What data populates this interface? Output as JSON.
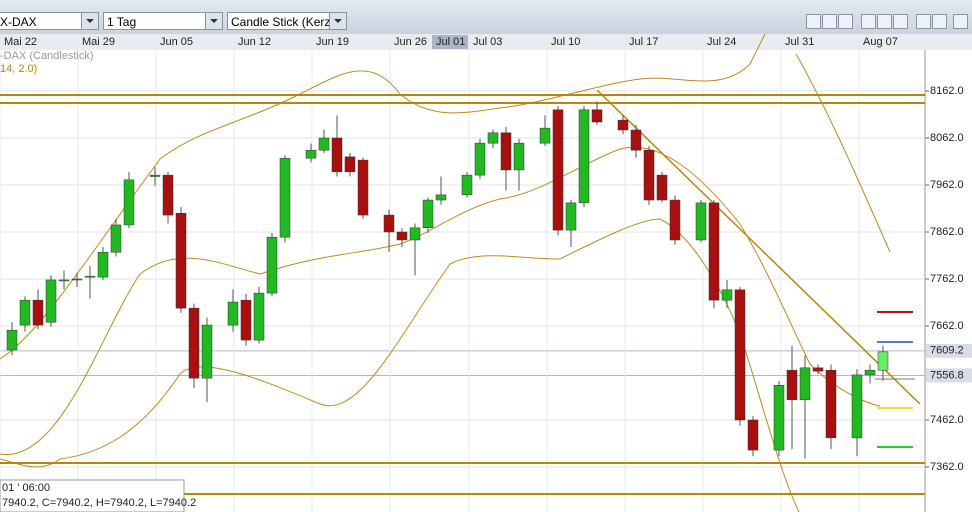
{
  "toolbar": {
    "symbol": "X-DAX",
    "interval": "1 Tag",
    "chart_type": "Candle Stick (Kerzer"
  },
  "chart_data": {
    "type": "candlestick",
    "legend": [
      "-DAX (Candlestick)",
      "14, 2.0)"
    ],
    "info": [
      "01 ' 06:00",
      "7940.2, C=7940.2, H=7940.2, L=7940.2"
    ],
    "dates": [
      "Mai 22",
      "Mai 29",
      "Jun 05",
      "Jun 12",
      "Jun 19",
      "Jun 26",
      "Jul 03",
      "Jul 10",
      "Jul 17",
      "Jul 24",
      "Jul 31",
      "Aug 07"
    ],
    "crosshair_date": "Jul 01",
    "ylim": [
      7266.3,
      8249.2
    ],
    "yticks": [
      {
        "value": 8162,
        "label": "8162.0"
      },
      {
        "value": 8062,
        "label": "8062.0"
      },
      {
        "value": 7962,
        "label": "7962.0"
      },
      {
        "value": 7862,
        "label": "7862.0"
      },
      {
        "value": 7762,
        "label": "7762.0"
      },
      {
        "value": 7662,
        "label": "7662.0"
      },
      {
        "value": 7462,
        "label": "7462.0"
      },
      {
        "value": 7362,
        "label": "7362.0"
      }
    ],
    "price_markers": [
      7609.2,
      7556.8
    ],
    "up_color": "#22b822",
    "down_color": "#a81010",
    "last_color": "#66ee66",
    "open": [
      7611,
      7664,
      7717,
      7670,
      7758,
      7760,
      7766,
      7766,
      7819,
      7877,
      null,
      7980,
      7983,
      7902,
      7700,
      7551,
      null,
      7664,
      7717,
      7632,
      7732,
      7851,
      null,
      8019,
      8036,
      8062,
      8022,
      8015,
      null,
      7898,
      7862,
      7845,
      7871,
      7930,
      null,
      7941,
      7983,
      8051,
      8073,
      7994,
      null,
      8051,
      8122,
      7866,
      7924,
      8122,
      null,
      8100,
      8079,
      8036,
      7983,
      7930,
      null,
      7845,
      7924,
      7717,
      7739,
      7462,
      null,
      7398,
      7568,
      7505,
      7573,
      7568,
      null,
      7424,
      7558,
      7568
    ],
    "high": [
      7670,
      7725,
      7740,
      7770,
      7780,
      7775,
      7790,
      7830,
      7890,
      7990,
      null,
      8000,
      7990,
      7915,
      7710,
      7680,
      null,
      7740,
      7730,
      7745,
      7860,
      8025,
      null,
      8050,
      8080,
      8110,
      8030,
      8020,
      null,
      7910,
      7870,
      7880,
      7935,
      7980,
      null,
      7990,
      8060,
      8080,
      8085,
      8060,
      null,
      8110,
      8130,
      7930,
      8130,
      8140,
      null,
      8110,
      8090,
      8045,
      7990,
      7940,
      null,
      7930,
      7930,
      7760,
      7745,
      7470,
      null,
      7545,
      7620,
      7600,
      7580,
      7580,
      null,
      7570,
      7580,
      7620
    ],
    "low": [
      7600,
      7650,
      7655,
      7660,
      7740,
      7745,
      7720,
      7760,
      7810,
      7870,
      null,
      7960,
      7880,
      7690,
      7530,
      7500,
      null,
      7650,
      7620,
      7625,
      7725,
      7840,
      null,
      8010,
      8030,
      7980,
      7980,
      7890,
      null,
      7820,
      7830,
      7770,
      7860,
      7920,
      null,
      7935,
      7975,
      8040,
      7950,
      7950,
      null,
      8045,
      7855,
      7830,
      7915,
      8090,
      null,
      8070,
      8020,
      7920,
      7925,
      7835,
      null,
      7840,
      7700,
      7700,
      7450,
      7385,
      null,
      7385,
      7400,
      7380,
      7560,
      7400,
      null,
      7385,
      7540,
      7545
    ],
    "close": [
      7653,
      7717,
      7664,
      7760,
      7760,
      7762,
      7768,
      7819,
      7877,
      7973,
      null,
      7983,
      7898,
      7700,
      7551,
      7664,
      null,
      7713,
      7632,
      7732,
      7851,
      8019,
      null,
      8036,
      8062,
      7990,
      7990,
      7898,
      null,
      7862,
      7845,
      7871,
      7930,
      7941,
      null,
      7983,
      8051,
      8073,
      7994,
      8051,
      null,
      8083,
      7866,
      7924,
      8122,
      8096,
      null,
      8079,
      8036,
      7930,
      7930,
      7845,
      null,
      7924,
      7717,
      7739,
      7462,
      7398,
      null,
      7536,
      7505,
      7573,
      7566,
      7424,
      null,
      7558,
      7568,
      7607
    ]
  }
}
